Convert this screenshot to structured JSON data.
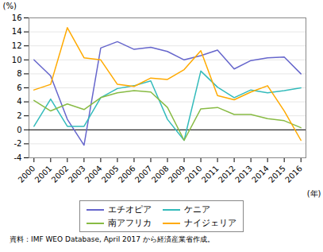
{
  "chart_data": {
    "type": "line",
    "x": [
      2000,
      2001,
      2002,
      2003,
      2004,
      2005,
      2006,
      2007,
      2008,
      2009,
      2010,
      2011,
      2012,
      2013,
      2014,
      2015,
      2016
    ],
    "series": [
      {
        "name": "エチオピア",
        "color": "#6666cc",
        "values": [
          10.0,
          7.7,
          1.5,
          -2.2,
          11.7,
          12.6,
          11.5,
          11.8,
          11.2,
          10.0,
          10.6,
          11.4,
          8.7,
          9.9,
          10.3,
          10.4,
          8.0
        ]
      },
      {
        "name": "ケニア",
        "color": "#33bbbb",
        "values": [
          0.5,
          4.4,
          0.5,
          0.5,
          4.6,
          5.9,
          6.3,
          7.0,
          1.5,
          -1.5,
          8.4,
          6.1,
          4.6,
          5.7,
          5.3,
          5.6,
          6.0
        ]
      },
      {
        "name": "南アフリカ",
        "color": "#88bb44",
        "values": [
          4.2,
          2.7,
          3.7,
          2.9,
          4.6,
          5.3,
          5.6,
          5.4,
          3.2,
          -1.5,
          3.0,
          3.2,
          2.2,
          2.2,
          1.6,
          1.3,
          0.3
        ]
      },
      {
        "name": "ナイジェリア",
        "color": "#ffaa00",
        "values": [
          5.7,
          6.5,
          14.6,
          10.3,
          10.0,
          6.5,
          6.2,
          7.4,
          7.2,
          8.6,
          11.3,
          4.9,
          4.3,
          5.4,
          6.3,
          2.7,
          -1.5
        ]
      }
    ],
    "xlabel": "(年)",
    "ylabel": "(%)",
    "caption": "資料：IMF WEO Database, April 2017 から経済産業省作成。",
    "xlim": [
      1999.7,
      2016.3
    ],
    "xticks": [
      2000,
      2001,
      2002,
      2003,
      2004,
      2005,
      2006,
      2007,
      2008,
      2009,
      2010,
      2011,
      2012,
      2013,
      2014,
      2015,
      2016
    ],
    "ylim": [
      -4,
      16
    ],
    "yticks": [
      -4,
      -2,
      0,
      2,
      4,
      6,
      8,
      10,
      12,
      14,
      16
    ],
    "hline": 0,
    "grid": true,
    "legend": "bottom"
  }
}
